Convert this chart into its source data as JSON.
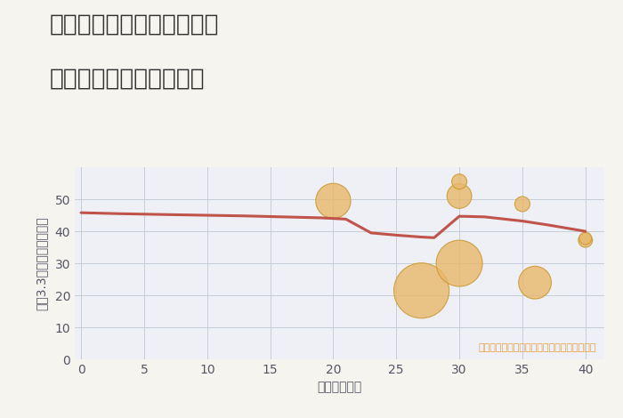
{
  "title_line1": "奈良県奈良市富雄泉ヶ丘の",
  "title_line2": "築年数別中古戸建て価格",
  "xlabel": "築年数（年）",
  "ylabel_chars": [
    "坪",
    "（",
    "3",
    ".",
    "3",
    "㎡",
    "）",
    "単",
    "価",
    "（",
    "万",
    "円",
    "）"
  ],
  "ylabel": "坪（3.3㎡）単価（万円）",
  "bg_color": "#f5f4ef",
  "plot_bg_color": "#eef0f5",
  "line_x": [
    0,
    3,
    7,
    10,
    13,
    15,
    17,
    19,
    21,
    23,
    25,
    27,
    28,
    30,
    32,
    35,
    37,
    40
  ],
  "line_y": [
    45.8,
    45.5,
    45.2,
    45.0,
    44.8,
    44.6,
    44.4,
    44.2,
    43.8,
    39.5,
    38.8,
    38.2,
    38.0,
    44.7,
    44.5,
    43.2,
    42.0,
    40.0
  ],
  "line_color": "#c0544a",
  "line_width": 2.2,
  "scatter_x": [
    20,
    27,
    30,
    30,
    30,
    35,
    36,
    40,
    40
  ],
  "scatter_y": [
    49.5,
    21.5,
    51.0,
    55.5,
    30.0,
    48.5,
    24.0,
    37.2,
    37.8
  ],
  "scatter_sizes": [
    800,
    2000,
    400,
    150,
    1400,
    150,
    700,
    130,
    100
  ],
  "scatter_color": "#e8b86d",
  "scatter_alpha": 0.82,
  "scatter_edgecolor": "#c8962a",
  "annotation": "円の大きさは、取引のあった物件面積を示す",
  "annotation_color": "#e8a040",
  "xlim": [
    -0.5,
    41.5
  ],
  "ylim": [
    0,
    60
  ],
  "xticks": [
    0,
    5,
    10,
    15,
    20,
    25,
    30,
    35,
    40
  ],
  "yticks": [
    0,
    10,
    20,
    30,
    40,
    50
  ],
  "grid_color": "#c5cdd8",
  "title_fontsize": 19,
  "axis_label_fontsize": 10,
  "tick_fontsize": 10,
  "annotation_fontsize": 8
}
